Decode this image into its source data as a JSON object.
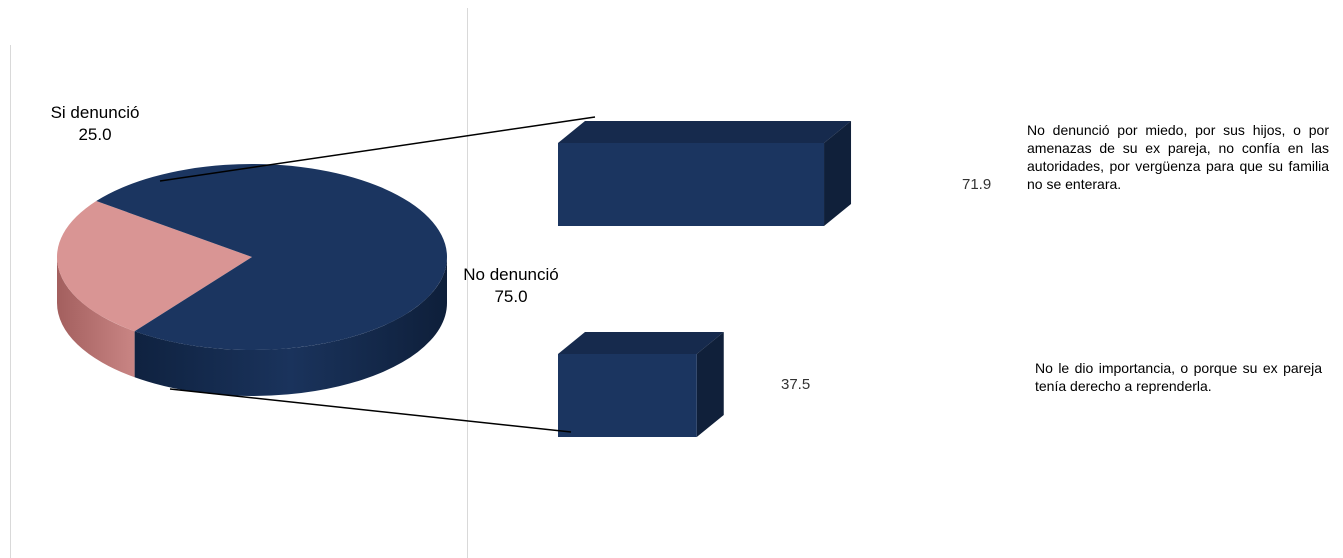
{
  "chart_data": [
    {
      "type": "pie",
      "title": "",
      "slices": [
        {
          "category": "Si denunció",
          "value": 25.0,
          "value_label": "25.0",
          "color": "#d99594"
        },
        {
          "category": "No denunció",
          "value": 75.0,
          "value_label": "75.0",
          "color": "#1b3560"
        }
      ]
    },
    {
      "type": "bar",
      "orientation": "horizontal",
      "title": "",
      "categories": [
        "No denunció por miedo,  por sus hijos, o  por amenazas de su ex pareja, no confía en las autoridades, por vergüenza para que su familia no se enterara.",
        "No le dio importancia, o porque su ex pareja tenía derecho a reprenderla."
      ],
      "values": [
        71.9,
        37.5
      ],
      "value_labels": [
        "71.9",
        "37.5"
      ],
      "xlim": [
        0,
        100
      ],
      "color": "#1b3560"
    }
  ]
}
